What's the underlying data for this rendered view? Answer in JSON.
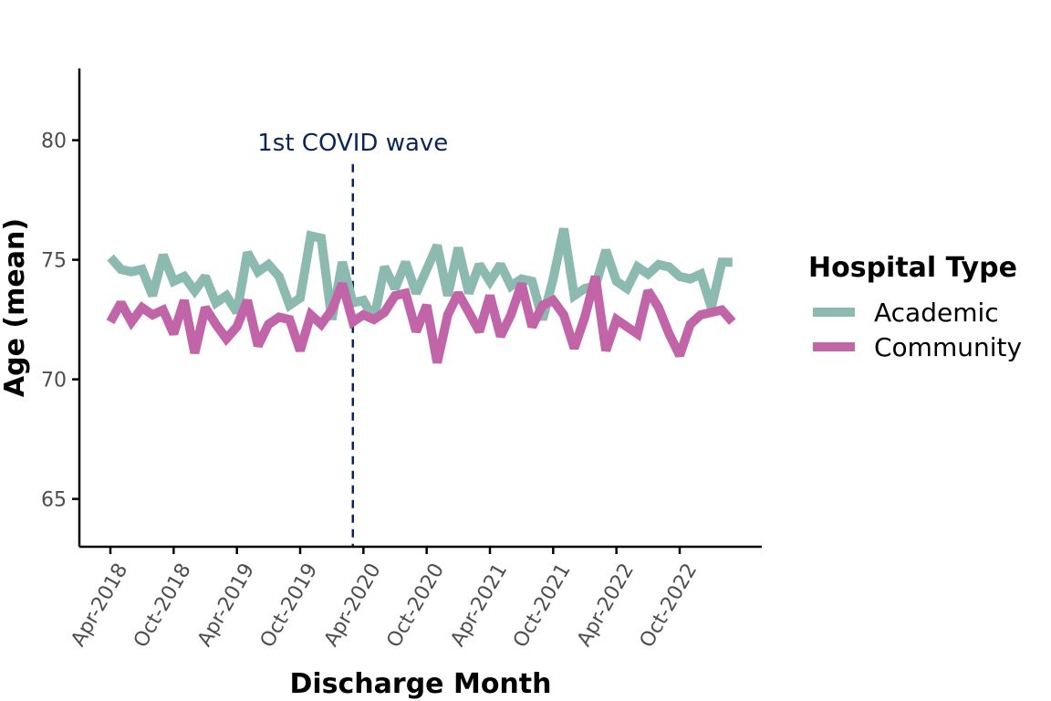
{
  "chart_data": {
    "type": "line",
    "title": "",
    "xlabel": "Discharge Month",
    "ylabel": "Age (mean)",
    "x_tick_labels": [
      "Apr-2018",
      "Oct-2018",
      "Apr-2019",
      "Oct-2019",
      "Apr-2020",
      "Oct-2020",
      "Apr-2021",
      "Oct-2021",
      "Apr-2022",
      "Oct-2022"
    ],
    "x_tick_dates": [
      "2018-04",
      "2018-10",
      "2019-04",
      "2019-10",
      "2020-04",
      "2020-10",
      "2021-04",
      "2021-10",
      "2022-04",
      "2022-10"
    ],
    "y_ticks": [
      65,
      70,
      75,
      80
    ],
    "ylim": [
      63,
      83
    ],
    "xlim": [
      "2018-01",
      "2023-06"
    ],
    "grid": false,
    "legend": {
      "title": "Hospital Type",
      "position": "right"
    },
    "annotation": {
      "label": "1st COVID wave",
      "x": "2020-03",
      "color": "#0b2559"
    },
    "x": [
      "2018-04",
      "2018-05",
      "2018-06",
      "2018-07",
      "2018-08",
      "2018-09",
      "2018-10",
      "2018-11",
      "2018-12",
      "2019-01",
      "2019-02",
      "2019-03",
      "2019-04",
      "2019-05",
      "2019-06",
      "2019-07",
      "2019-08",
      "2019-09",
      "2019-10",
      "2019-11",
      "2019-12",
      "2020-01",
      "2020-02",
      "2020-03",
      "2020-04",
      "2020-05",
      "2020-06",
      "2020-07",
      "2020-08",
      "2020-09",
      "2020-10",
      "2020-11",
      "2020-12",
      "2021-01",
      "2021-02",
      "2021-03",
      "2021-04",
      "2021-05",
      "2021-06",
      "2021-07",
      "2021-08",
      "2021-09",
      "2021-10",
      "2021-11",
      "2021-12",
      "2022-01",
      "2022-02",
      "2022-03",
      "2022-04",
      "2022-05",
      "2022-06",
      "2022-07",
      "2022-08",
      "2022-09",
      "2022-10",
      "2022-11",
      "2022-12",
      "2023-01",
      "2023-02",
      "2023-03"
    ],
    "series": [
      {
        "name": "Academic",
        "color": "#8cbab0",
        "values": [
          75.1,
          74.6,
          74.5,
          74.6,
          73.5,
          75.2,
          74.1,
          74.3,
          73.7,
          74.3,
          73.2,
          73.5,
          72.8,
          75.3,
          74.5,
          74.8,
          74.3,
          73.1,
          73.4,
          76.0,
          75.9,
          72.5,
          74.9,
          73.2,
          73.3,
          72.5,
          74.7,
          73.8,
          74.9,
          73.6,
          74.6,
          75.6,
          73.5,
          75.5,
          73.6,
          74.8,
          74.1,
          74.8,
          73.9,
          74.2,
          74.1,
          72.5,
          74.2,
          76.3,
          73.5,
          73.8,
          73.9,
          75.4,
          74.1,
          73.8,
          74.7,
          74.4,
          74.8,
          74.7,
          74.3,
          74.2,
          74.4,
          73.0,
          74.9,
          74.9
        ]
      },
      {
        "name": "Community",
        "color": "#c265a8",
        "values": [
          72.4,
          73.2,
          72.4,
          73.0,
          72.7,
          72.9,
          71.9,
          73.3,
          71.1,
          73.0,
          72.3,
          71.7,
          72.2,
          73.3,
          71.4,
          72.3,
          72.6,
          72.5,
          71.2,
          72.7,
          72.3,
          72.9,
          74.0,
          72.4,
          72.7,
          72.5,
          72.8,
          73.5,
          73.6,
          72.0,
          73.1,
          70.7,
          72.7,
          73.6,
          72.8,
          72.0,
          73.5,
          71.8,
          72.7,
          74.0,
          72.2,
          73.1,
          73.3,
          72.7,
          71.3,
          72.6,
          74.3,
          71.2,
          72.5,
          72.2,
          71.9,
          73.7,
          73.0,
          71.9,
          71.0,
          72.3,
          72.7,
          72.8,
          72.9,
          72.4
        ]
      }
    ]
  }
}
